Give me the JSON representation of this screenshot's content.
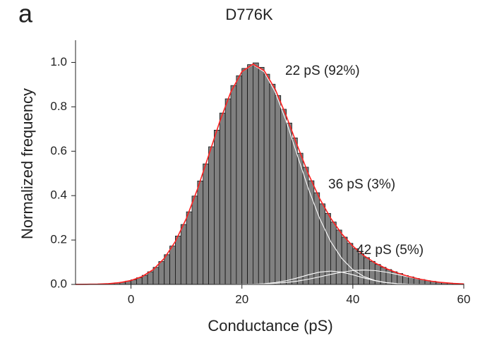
{
  "chart_data": {
    "type": "histogram",
    "panel_label": "a",
    "title": "D776K",
    "x_label": "Conductance (pS)",
    "y_label": "Normalized frequency",
    "xlim": [
      -10,
      60
    ],
    "xticks": [
      0,
      20,
      40,
      60
    ],
    "ylim": [
      0,
      1.1
    ],
    "yticks": [
      {
        "value": 0,
        "label": "0.0"
      },
      0.2,
      0.4,
      0.6,
      0.8,
      {
        "value": 1,
        "label": "1.0"
      }
    ],
    "color": "#808080",
    "bins": [
      -10,
      -9,
      -8,
      -7,
      -6,
      -5,
      -4,
      -3,
      -2,
      -1,
      0,
      1,
      2,
      3,
      4,
      5,
      6,
      7,
      8,
      9,
      10,
      11,
      12,
      13,
      14,
      15,
      16,
      17,
      18,
      19,
      20,
      21,
      22,
      23,
      24,
      25,
      26,
      27,
      28,
      29,
      30,
      31,
      32,
      33,
      34,
      35,
      36,
      37,
      38,
      39,
      40,
      41,
      42,
      43,
      44,
      45,
      46,
      47,
      48,
      49,
      50,
      51,
      52,
      53,
      54,
      55,
      56,
      57,
      58,
      59,
      60
    ],
    "counts": [
      0.0003,
      0.0005,
      0.0008,
      0.0012,
      0.002,
      0.003,
      0.0045,
      0.007,
      0.01,
      0.015,
      0.021,
      0.03,
      0.041,
      0.057,
      0.077,
      0.103,
      0.134,
      0.173,
      0.218,
      0.27,
      0.327,
      0.398,
      0.466,
      0.543,
      0.62,
      0.695,
      0.772,
      0.836,
      0.896,
      0.94,
      0.973,
      0.99,
      0.998,
      0.978,
      0.947,
      0.902,
      0.851,
      0.789,
      0.727,
      0.66,
      0.591,
      0.528,
      0.467,
      0.413,
      0.363,
      0.32,
      0.281,
      0.245,
      0.213,
      0.185,
      0.161,
      0.139,
      0.121,
      0.104,
      0.09,
      0.077,
      0.067,
      0.057,
      0.049,
      0.04,
      0.034,
      0.027,
      0.022,
      0.017,
      0.014,
      0.01,
      0.008,
      0.006,
      0.004,
      0.003
    ],
    "fit_x": [
      -10,
      -8,
      -6,
      -4,
      -2,
      0,
      2,
      4,
      6,
      8,
      10,
      12,
      14,
      16,
      18,
      20,
      22,
      24,
      26,
      28,
      30,
      32,
      34,
      36,
      38,
      40,
      42,
      44,
      46,
      48,
      50,
      52,
      54,
      56,
      58,
      60
    ],
    "fits": [
      {
        "label": "22 pS (92%)",
        "color": "#ffffff",
        "values": [
          0.0002,
          0.0006,
          0.0015,
          0.0036,
          0.0082,
          0.0177,
          0.0354,
          0.0665,
          0.1173,
          0.1934,
          0.2982,
          0.4302,
          0.581,
          0.7334,
          0.8665,
          0.9575,
          0.99,
          0.9575,
          0.8665,
          0.7334,
          0.581,
          0.4302,
          0.2982,
          0.1934,
          0.1173,
          0.0665,
          0.0354,
          0.0177,
          0.0082,
          0.0036,
          0.0015,
          0.0005,
          0.0002,
          0,
          0,
          0
        ]
      },
      {
        "label": "36 pS (3%)",
        "color": "#ffffff",
        "values": [
          0,
          0,
          0,
          0,
          0,
          0,
          0,
          0,
          0,
          0,
          0,
          0,
          0,
          0,
          0,
          0.0004,
          0.0012,
          0.0034,
          0.0081,
          0.0167,
          0.0292,
          0.0436,
          0.0554,
          0.06,
          0.0554,
          0.0436,
          0.0292,
          0.0167,
          0.0081,
          0.0034,
          0.0012,
          0.0004,
          0,
          0,
          0,
          0
        ]
      },
      {
        "label": "42 pS (5%)",
        "color": "#ffffff",
        "values": [
          0,
          0,
          0,
          0,
          0,
          0,
          0,
          0,
          0,
          0,
          0,
          0,
          0,
          0.0001,
          0.0002,
          0.0005,
          0.0011,
          0.0024,
          0.0048,
          0.0088,
          0.0149,
          0.0234,
          0.0338,
          0.045,
          0.0552,
          0.0624,
          0.065,
          0.0624,
          0.0552,
          0.045,
          0.0338,
          0.0234,
          0.0149,
          0.0088,
          0.0048,
          0.0024
        ]
      },
      {
        "color": "#ff2020",
        "values": [
          0.0002,
          0.0006,
          0.0015,
          0.0036,
          0.0082,
          0.0177,
          0.0354,
          0.0665,
          0.1173,
          0.1934,
          0.2982,
          0.4302,
          0.581,
          0.7335,
          0.8667,
          0.9584,
          0.9923,
          0.9633,
          0.8794,
          0.7589,
          0.6251,
          0.4972,
          0.3874,
          0.2984,
          0.2279,
          0.1725,
          0.1296,
          0.0968,
          0.0715,
          0.052,
          0.0365,
          0.0243,
          0.0151,
          0.0088,
          0.0048,
          0.0024
        ]
      }
    ]
  }
}
